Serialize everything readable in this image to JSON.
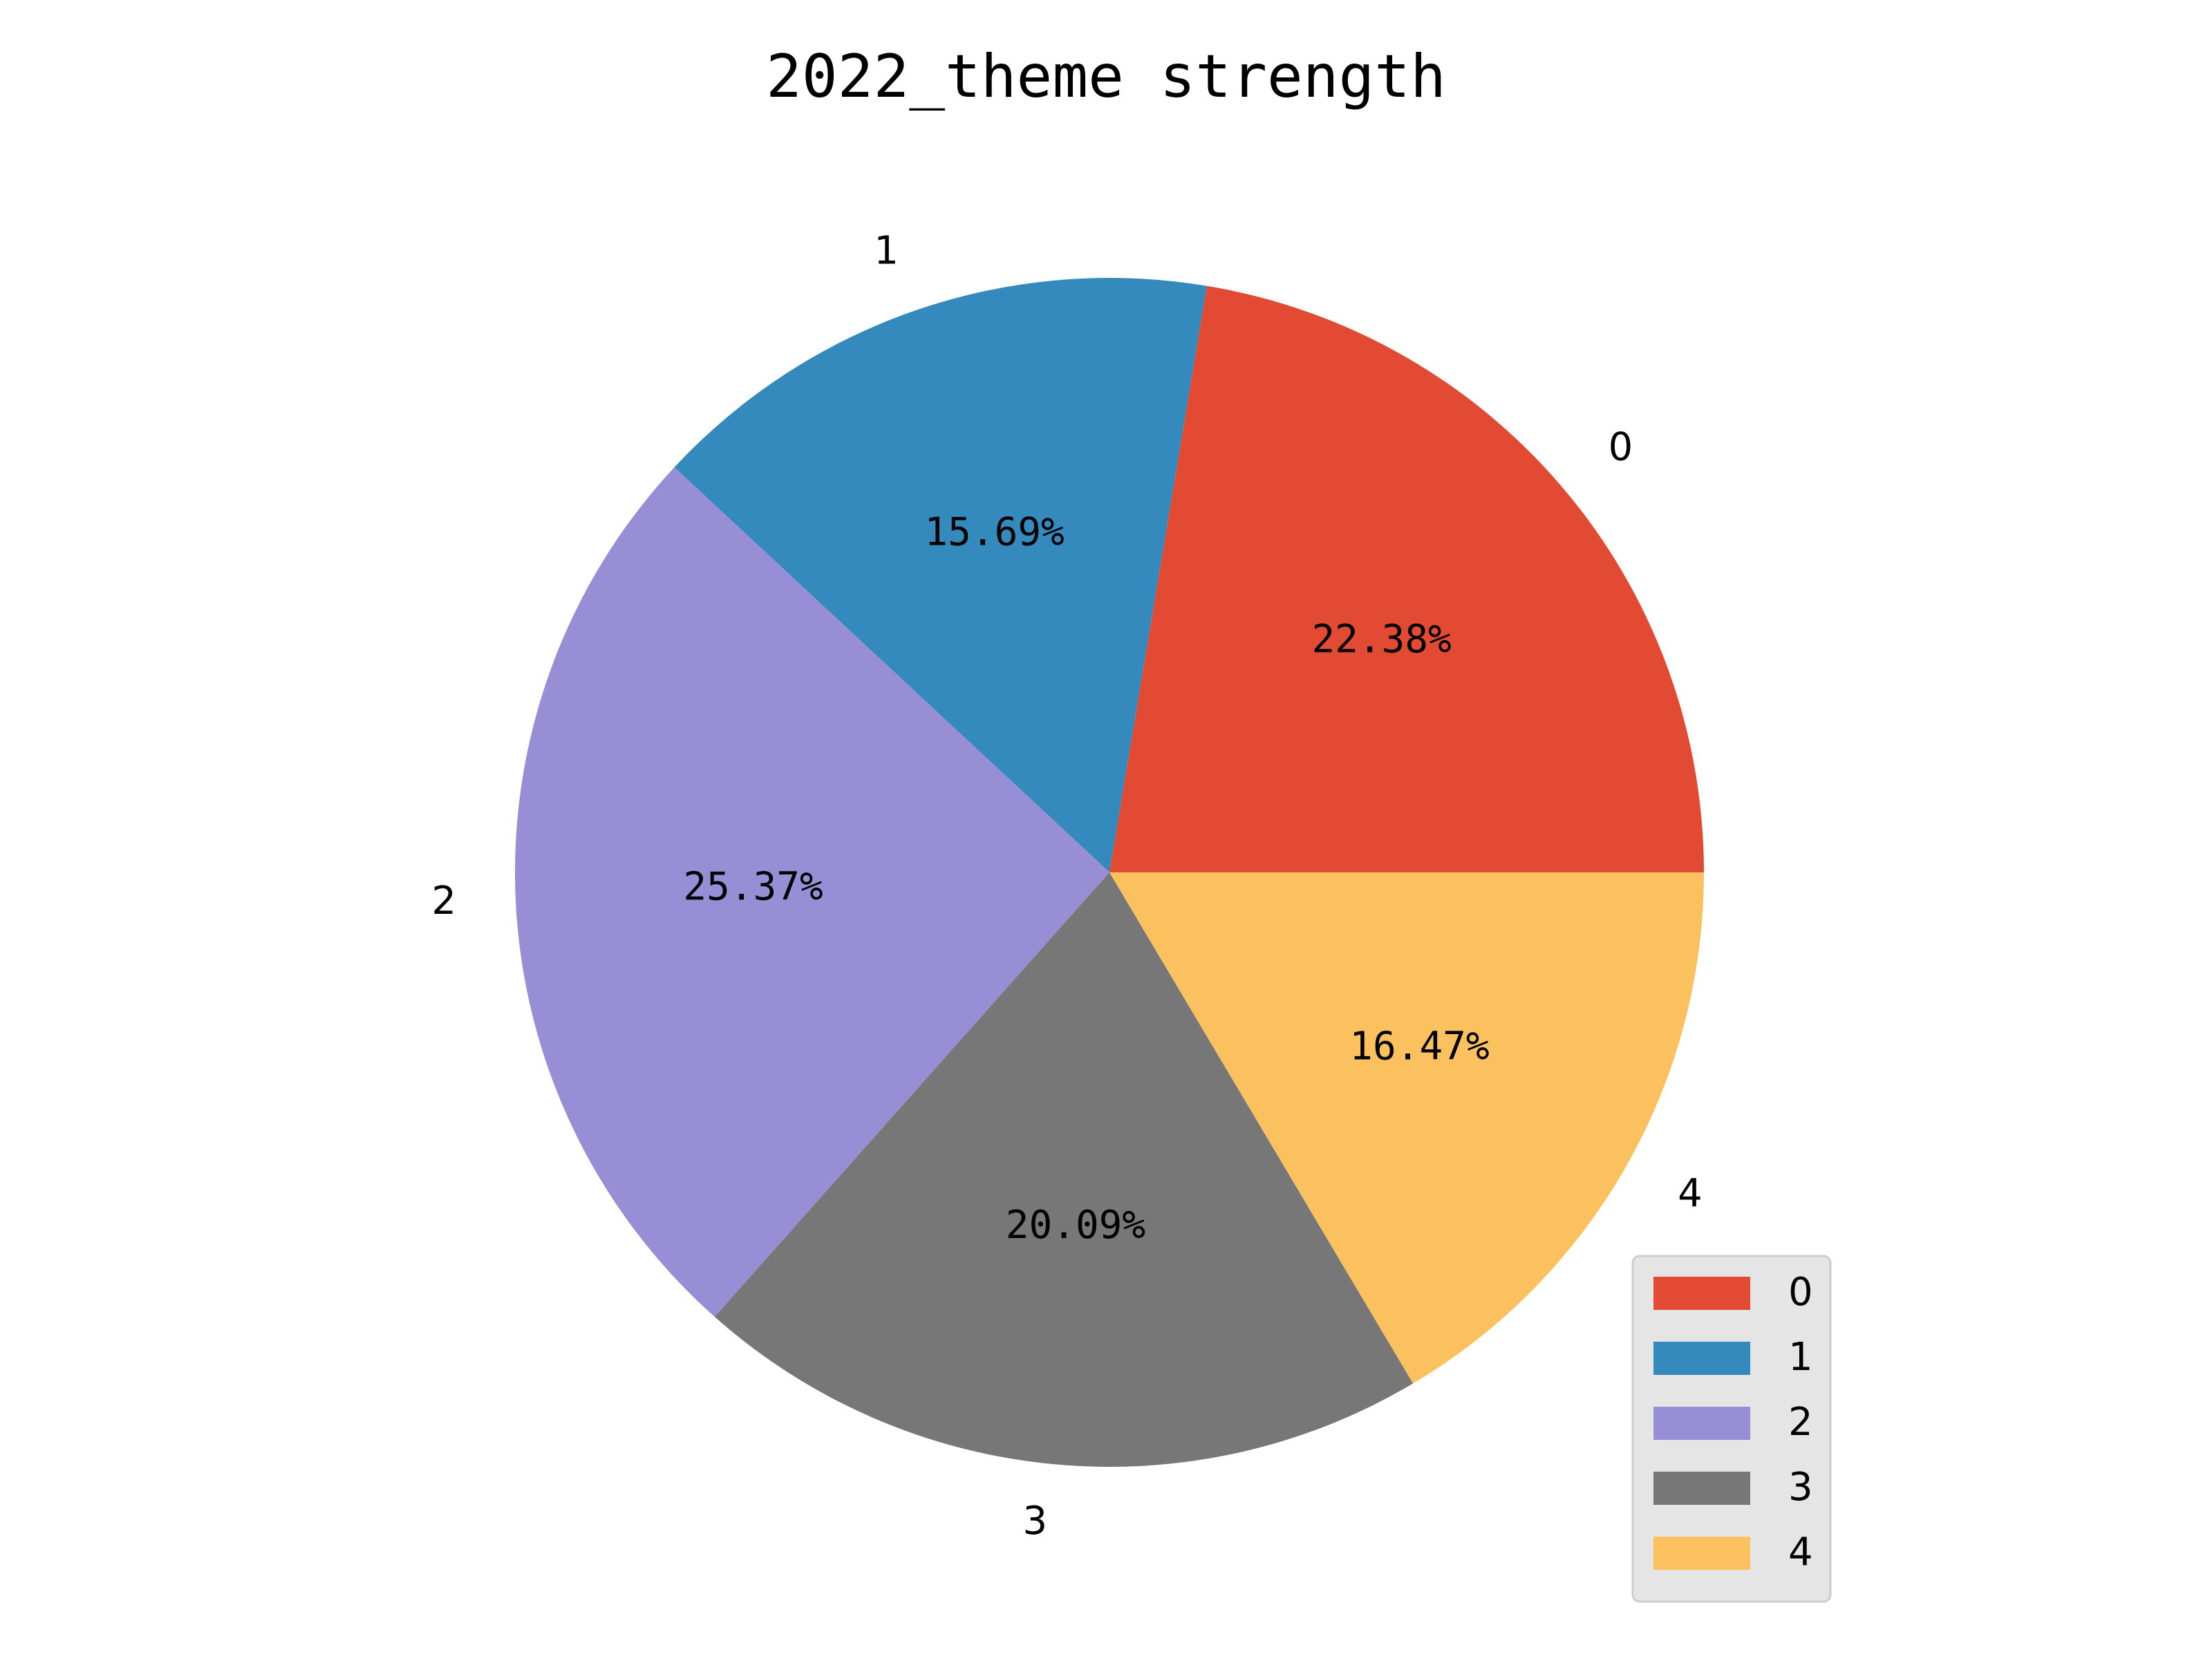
{
  "chart_data": {
    "type": "pie",
    "title": "2022_theme strength",
    "categories": [
      "0",
      "1",
      "2",
      "3",
      "4"
    ],
    "values": [
      22.38,
      15.69,
      25.37,
      20.09,
      16.47
    ],
    "labels": [
      "22.38%",
      "15.69%",
      "25.37%",
      "20.09%",
      "16.47%"
    ],
    "colors": [
      "#E24A33",
      "#348ABD",
      "#988ED5",
      "#777777",
      "#FBC15E"
    ],
    "legend": {
      "position": "lower-right",
      "entries": [
        "0",
        "1",
        "2",
        "3",
        "4"
      ]
    }
  }
}
